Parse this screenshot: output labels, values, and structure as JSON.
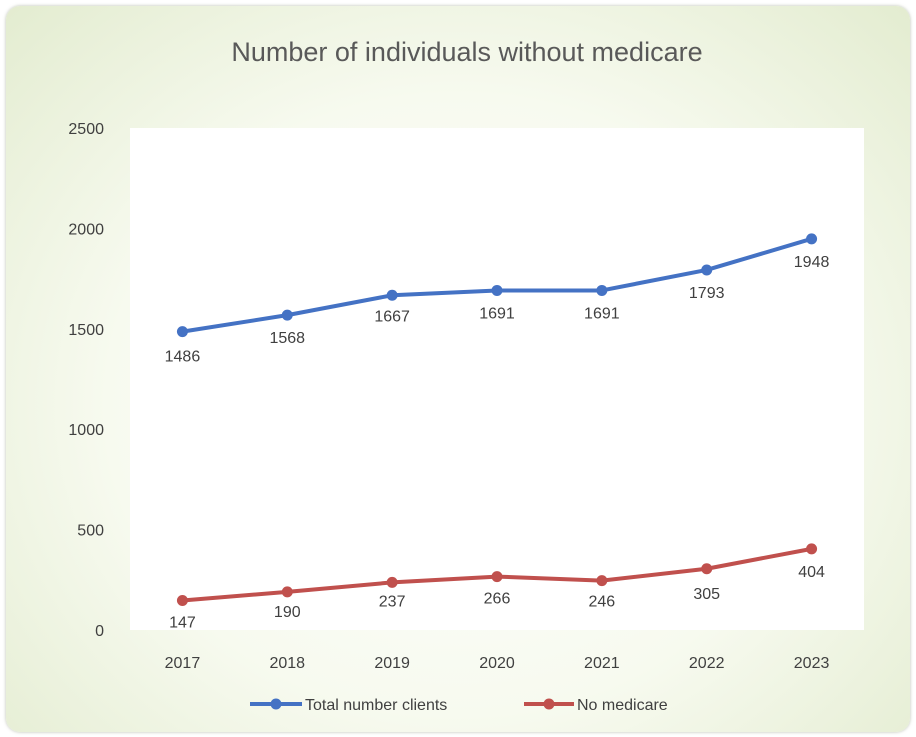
{
  "chart_data": {
    "type": "line",
    "title": "Number of individuals without medicare",
    "xlabel": "",
    "ylabel": "",
    "categories": [
      "2017",
      "2018",
      "2019",
      "2020",
      "2021",
      "2022",
      "2023"
    ],
    "ylim": [
      0,
      2500
    ],
    "yticks": [
      "0",
      "500",
      "1000",
      "1500",
      "2000",
      "2500"
    ],
    "grid": false,
    "legend_position": "bottom",
    "series": [
      {
        "name": "Total number clients",
        "color": "#4472c4",
        "values": [
          1486,
          1568,
          1667,
          1691,
          1691,
          1793,
          1948
        ],
        "labels": [
          "1486",
          "1568",
          "1667",
          "1691",
          "1691",
          "1793",
          "1948"
        ]
      },
      {
        "name": "No medicare",
        "color": "#c0504d",
        "values": [
          147,
          190,
          237,
          266,
          246,
          305,
          404
        ],
        "labels": [
          "147",
          "190",
          "237",
          "266",
          "246",
          "305",
          "404"
        ]
      }
    ]
  }
}
